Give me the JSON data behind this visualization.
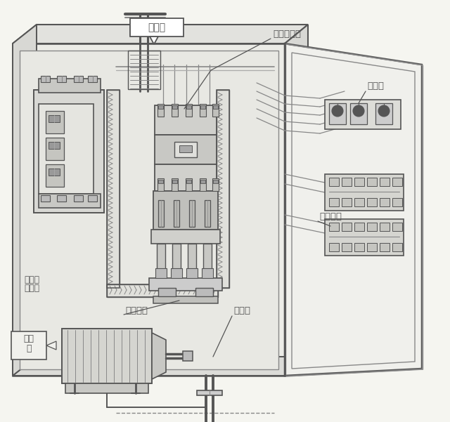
{
  "bg_color": "#f5f5f0",
  "line_color": "#555555",
  "light_line": "#888888",
  "lighter_line": "#aaaaaa",
  "labels": {
    "control_box": "控制箱",
    "ac_contactor": "交流接触器",
    "indicator": "指示灯",
    "button_switch": "按钮开关",
    "wiring_breaker_line1": "配线用",
    "wiring_breaker_line2": "断路器",
    "thermal_relay": "热继电器",
    "metal_tube": "金属管",
    "motor_line1": "电动",
    "motor_line2": "机"
  },
  "figsize": [
    6.4,
    6.01
  ],
  "dpi": 100
}
